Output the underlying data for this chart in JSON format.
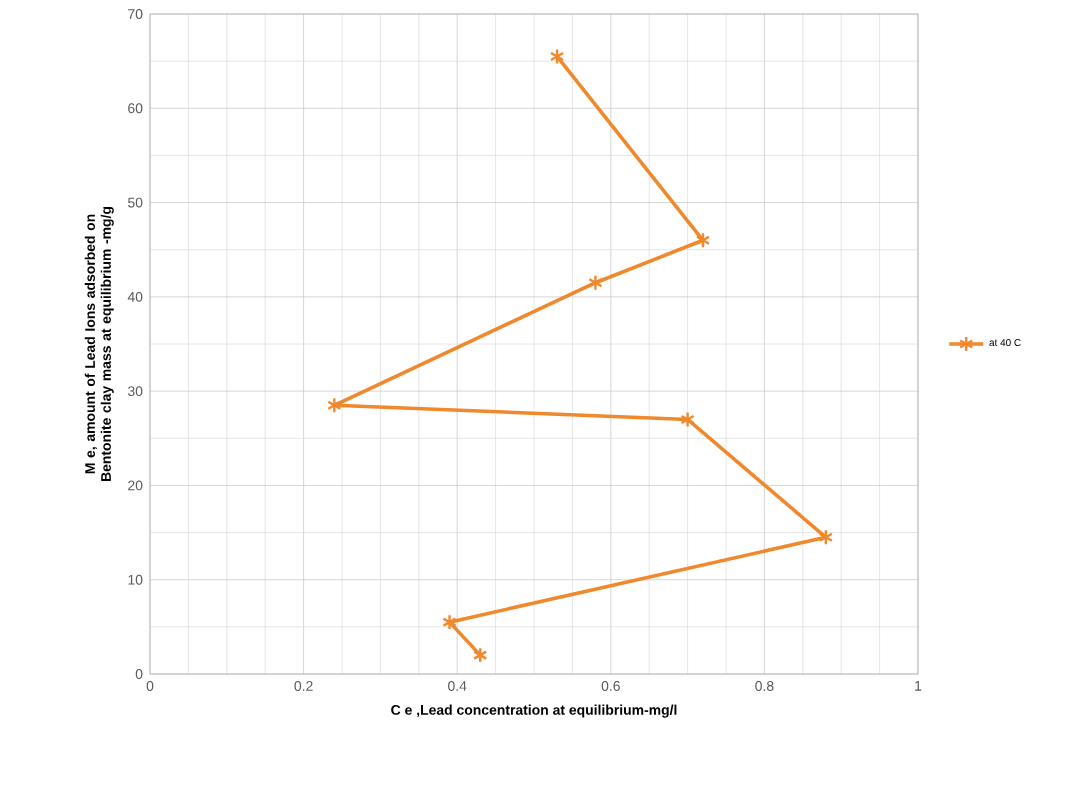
{
  "chart_data": {
    "type": "line",
    "xlabel": "C e ,Lead concentration at equilibrium-mg/l",
    "ylabel": "M e, amount of Lead Ions adsorbed on Bentonite clay mass at equilibrium -mg/g",
    "x": [
      0.53,
      0.72,
      0.58,
      0.24,
      0.7,
      0.88,
      0.39,
      0.43
    ],
    "series": [
      {
        "name": "at 40 C",
        "color": "#f0882c",
        "values": [
          65.5,
          46,
          41.5,
          28.5,
          27,
          14.5,
          5.5,
          2
        ]
      }
    ],
    "xlim": [
      0,
      1
    ],
    "ylim": [
      0,
      70
    ],
    "xticks": [
      0,
      0.2,
      0.4,
      0.6,
      0.8,
      1
    ],
    "yticks": [
      0,
      10,
      20,
      30,
      40,
      50,
      60,
      70
    ],
    "grid": true,
    "legend": "right",
    "marker": "cross",
    "line_style": "solid"
  }
}
